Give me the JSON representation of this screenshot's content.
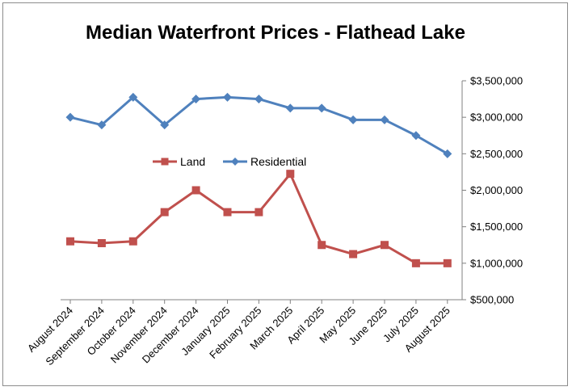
{
  "chart_data": {
    "type": "line",
    "title": "Median Waterfront Prices - Flathead Lake",
    "categories": [
      "August 2024",
      "September 2024",
      "October 2024",
      "November 2024",
      "December 2024",
      "January 2025",
      "February 2025",
      "March 2025",
      "April 2025",
      "May 2025",
      "June 2025",
      "July 2025",
      "August 2025"
    ],
    "series": [
      {
        "name": "Land",
        "color": "#c0504d",
        "marker": "square",
        "values": [
          1300000,
          1275000,
          1300000,
          1700000,
          2000000,
          1700000,
          1700000,
          2225000,
          1250000,
          1125000,
          1250000,
          1000000,
          1000000
        ]
      },
      {
        "name": "Residential",
        "color": "#4f81bd",
        "marker": "diamond",
        "values": [
          3000000,
          2895000,
          3275000,
          2895000,
          3250000,
          3275000,
          3250000,
          3125000,
          3125000,
          2965000,
          2965000,
          2750000,
          2500000
        ]
      }
    ],
    "y_axis": {
      "min": 500000,
      "max": 3500000,
      "step": 500000,
      "position": "right",
      "tick_labels": [
        "$500,000",
        "$1,000,000",
        "$1,500,000",
        "$2,000,000",
        "$2,500,000",
        "$3,000,000",
        "$3,500,000"
      ]
    },
    "grid": false,
    "legend_position": "center-left"
  }
}
